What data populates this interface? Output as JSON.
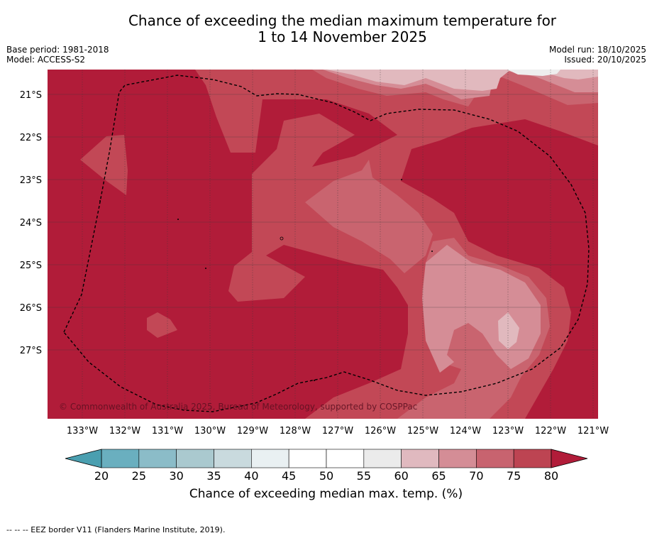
{
  "title_line1": "Chance of exceeding the median maximum temperature for",
  "title_line2": "1 to 14 November 2025",
  "base_period": "Base period: 1981-2018",
  "model": "Model: ACCESS-S2",
  "model_run": "Model run: 18/10/2025",
  "issued": "Issued: 20/10/2025",
  "copyright": "© Commonwealth of Australia 2025, Bureau of Meteorology, supported by COSPPac",
  "lat_labels": [
    "21°S",
    "22°S",
    "23°S",
    "24°S",
    "25°S",
    "26°S",
    "27°S"
  ],
  "lon_labels": [
    "133°W",
    "132°W",
    "131°W",
    "130°W",
    "129°W",
    "128°W",
    "127°W",
    "126°W",
    "125°W",
    "124°W",
    "123°W",
    "122°W",
    "121°W"
  ],
  "colorbar": {
    "title": "Chance of exceeding median max. temp. (%)",
    "ticks": [
      "20",
      "25",
      "30",
      "35",
      "40",
      "45",
      "50",
      "55",
      "60",
      "65",
      "70",
      "75",
      "80"
    ],
    "colors": [
      "#6aafbf",
      "#8bbcc8",
      "#aac9cf",
      "#c9dade",
      "#e9f0f2",
      "#ffffff",
      "#ffffff",
      "#ebebeb",
      "#e0b9bf",
      "#d48d96",
      "#c8636f",
      "#bd4452"
    ],
    "under_color": "#4a9fb0",
    "over_color": "#b11c39"
  },
  "palette": {
    "c80": "#b11c39",
    "c75": "#c24856",
    "c70": "#c9646f",
    "c65": "#d58d96",
    "c60": "#e1b9be",
    "c55": "#eeeeee"
  },
  "footer": "--  --  -- EEZ border V11 (Flanders Marine Institute, 2019)."
}
